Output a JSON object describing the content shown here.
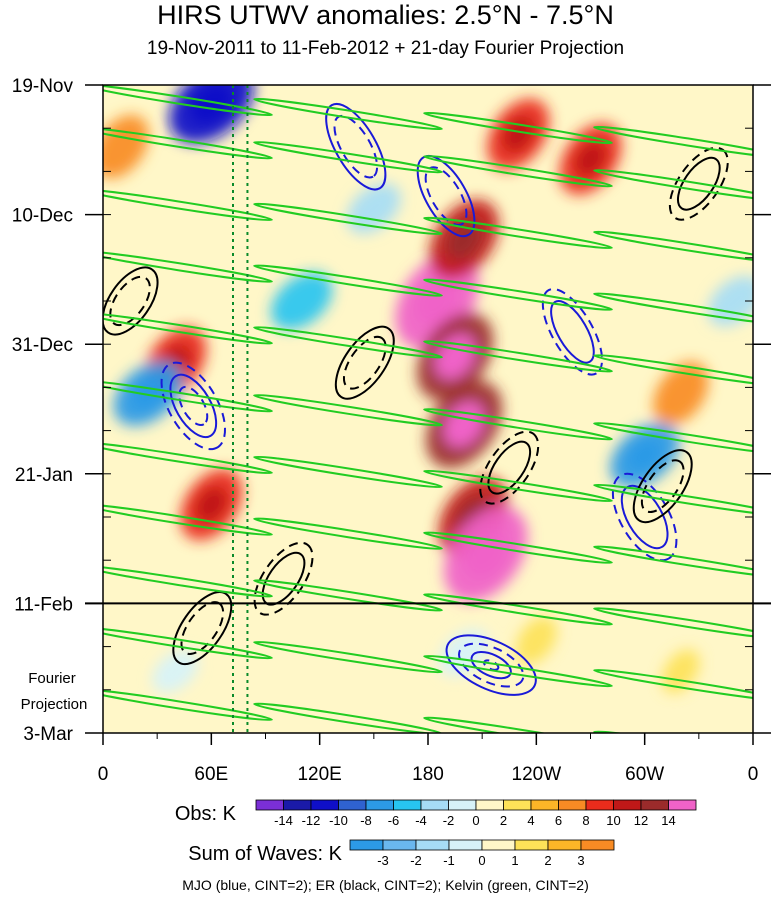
{
  "title": "HIRS UTWV anomalies: 2.5°N - 7.5°N",
  "subtitle": "19-Nov-2011 to 11-Feb-2012 + 21-day Fourier Projection",
  "chart_data": {
    "type": "heatmap",
    "description_title": "HIRS UTWV anomalies",
    "y_axis": {
      "labels": [
        "19-Nov",
        "10-Dec",
        "31-Dec",
        "21-Jan",
        "11-Feb",
        "3-Mar"
      ],
      "day_offsets": [
        0,
        21,
        42,
        63,
        84,
        105
      ],
      "observed_end_label": "11-Feb",
      "projection_label_line1": "Fourier",
      "projection_label_line2": "Projection"
    },
    "x_axis": {
      "labels": [
        "0",
        "60E",
        "120E",
        "180",
        "120W",
        "60W",
        "0"
      ],
      "longitudes_deg_east": [
        0,
        60,
        120,
        180,
        240,
        300,
        360
      ]
    },
    "reference_longitudes_deg_east": [
      72,
      80
    ],
    "obs_colorbar": {
      "label": "Obs: K",
      "ticks": [
        "-14",
        "-12",
        "-10",
        "-8",
        "-6",
        "-4",
        "-2",
        "0",
        "2",
        "4",
        "6",
        "8",
        "10",
        "12",
        "14"
      ],
      "colors": [
        "#7b2fd6",
        "#1a1aa8",
        "#0f0fc8",
        "#2f62d0",
        "#2c9ae6",
        "#27c4f0",
        "#a6dcf5",
        "#d6f2f8",
        "#fff7c8",
        "#fde258",
        "#fcb527",
        "#f88b24",
        "#ea2c1c",
        "#c01818",
        "#9b2b2b",
        "#f062c8"
      ]
    },
    "waves_colorbar": {
      "label": "Sum of Waves: K",
      "ticks": [
        "-3",
        "-2",
        "-1",
        "0",
        "1",
        "2",
        "3"
      ],
      "colors": [
        "#2c9ae6",
        "#6ab7ee",
        "#a6dcf5",
        "#d6f2f8",
        "#fff7c8",
        "#fde258",
        "#fcb527",
        "#f88b24"
      ]
    },
    "series": [
      {
        "name": "MJO",
        "color": "blue",
        "contour_interval": 2
      },
      {
        "name": "ER",
        "color": "black",
        "contour_interval": 2
      },
      {
        "name": "Kelvin",
        "color": "green",
        "contour_interval": 2
      }
    ],
    "anomaly_blobs": [
      {
        "lon": 185,
        "day": 35,
        "value": 14
      },
      {
        "lon": 195,
        "day": 44,
        "value": 12
      },
      {
        "lon": 200,
        "day": 55,
        "value": 12
      },
      {
        "lon": 205,
        "day": 70,
        "value": 10
      },
      {
        "lon": 212,
        "day": 76,
        "value": 14
      },
      {
        "lon": 200,
        "day": 25,
        "value": 10
      },
      {
        "lon": 230,
        "day": 8,
        "value": 8
      },
      {
        "lon": 270,
        "day": 12,
        "value": 8
      },
      {
        "lon": 320,
        "day": 50,
        "value": 6
      },
      {
        "lon": 40,
        "day": 45,
        "value": 8
      },
      {
        "lon": 60,
        "day": 68,
        "value": 8
      },
      {
        "lon": 10,
        "day": 10,
        "value": 6
      },
      {
        "lon": 60,
        "day": 3,
        "value": -12
      },
      {
        "lon": 25,
        "day": 50,
        "value": -8
      },
      {
        "lon": 110,
        "day": 35,
        "value": -6
      },
      {
        "lon": 300,
        "day": 60,
        "value": -8
      },
      {
        "lon": 150,
        "day": 20,
        "value": -4
      },
      {
        "lon": 350,
        "day": 35,
        "value": -4
      },
      {
        "lon": 200,
        "day": 92,
        "value": -3
      },
      {
        "lon": 240,
        "day": 90,
        "value": 2
      },
      {
        "lon": 320,
        "day": 95,
        "value": 1
      },
      {
        "lon": 40,
        "day": 95,
        "value": -2
      }
    ],
    "waves": {
      "mjo": [
        {
          "lon": 215,
          "day": 94,
          "rx": 30,
          "ry": 6,
          "angle": 25,
          "levels": 5
        },
        {
          "lon": 50,
          "day": 52,
          "rx": 30,
          "ry": 6,
          "angle": 60,
          "levels": 3
        },
        {
          "lon": 190,
          "day": 18,
          "rx": 28,
          "ry": 5,
          "angle": 60,
          "levels": 2
        },
        {
          "lon": 300,
          "day": 70,
          "rx": 30,
          "ry": 6,
          "angle": 60,
          "levels": 2
        },
        {
          "lon": 140,
          "day": 10,
          "rx": 30,
          "ry": 5,
          "angle": 60,
          "levels": 2
        },
        {
          "lon": 260,
          "day": 40,
          "rx": 30,
          "ry": 5,
          "angle": 60,
          "levels": 2
        }
      ],
      "er": [
        {
          "lon": 55,
          "day": 88,
          "rx": 26,
          "ry": 5,
          "angle": -55,
          "levels": 2
        },
        {
          "lon": 330,
          "day": 16,
          "rx": 26,
          "ry": 5,
          "angle": -55,
          "levels": 2
        },
        {
          "lon": 145,
          "day": 45,
          "rx": 26,
          "ry": 5,
          "angle": -55,
          "levels": 2
        },
        {
          "lon": 225,
          "day": 62,
          "rx": 26,
          "ry": 5,
          "angle": -55,
          "levels": 2
        },
        {
          "lon": 15,
          "day": 35,
          "rx": 24,
          "ry": 5,
          "angle": -55,
          "levels": 2
        },
        {
          "lon": 100,
          "day": 80,
          "rx": 26,
          "ry": 5,
          "angle": -55,
          "levels": 2
        },
        {
          "lon": 310,
          "day": 65,
          "rx": 26,
          "ry": 5,
          "angle": -55,
          "levels": 2
        }
      ],
      "kelvin_bands": [
        0,
        7,
        17,
        27,
        37,
        48,
        58,
        68,
        78,
        88,
        98
      ]
    }
  },
  "caption": "MJO (blue, CINT=2); ER (black, CINT=2); Kelvin (green, CINT=2)"
}
